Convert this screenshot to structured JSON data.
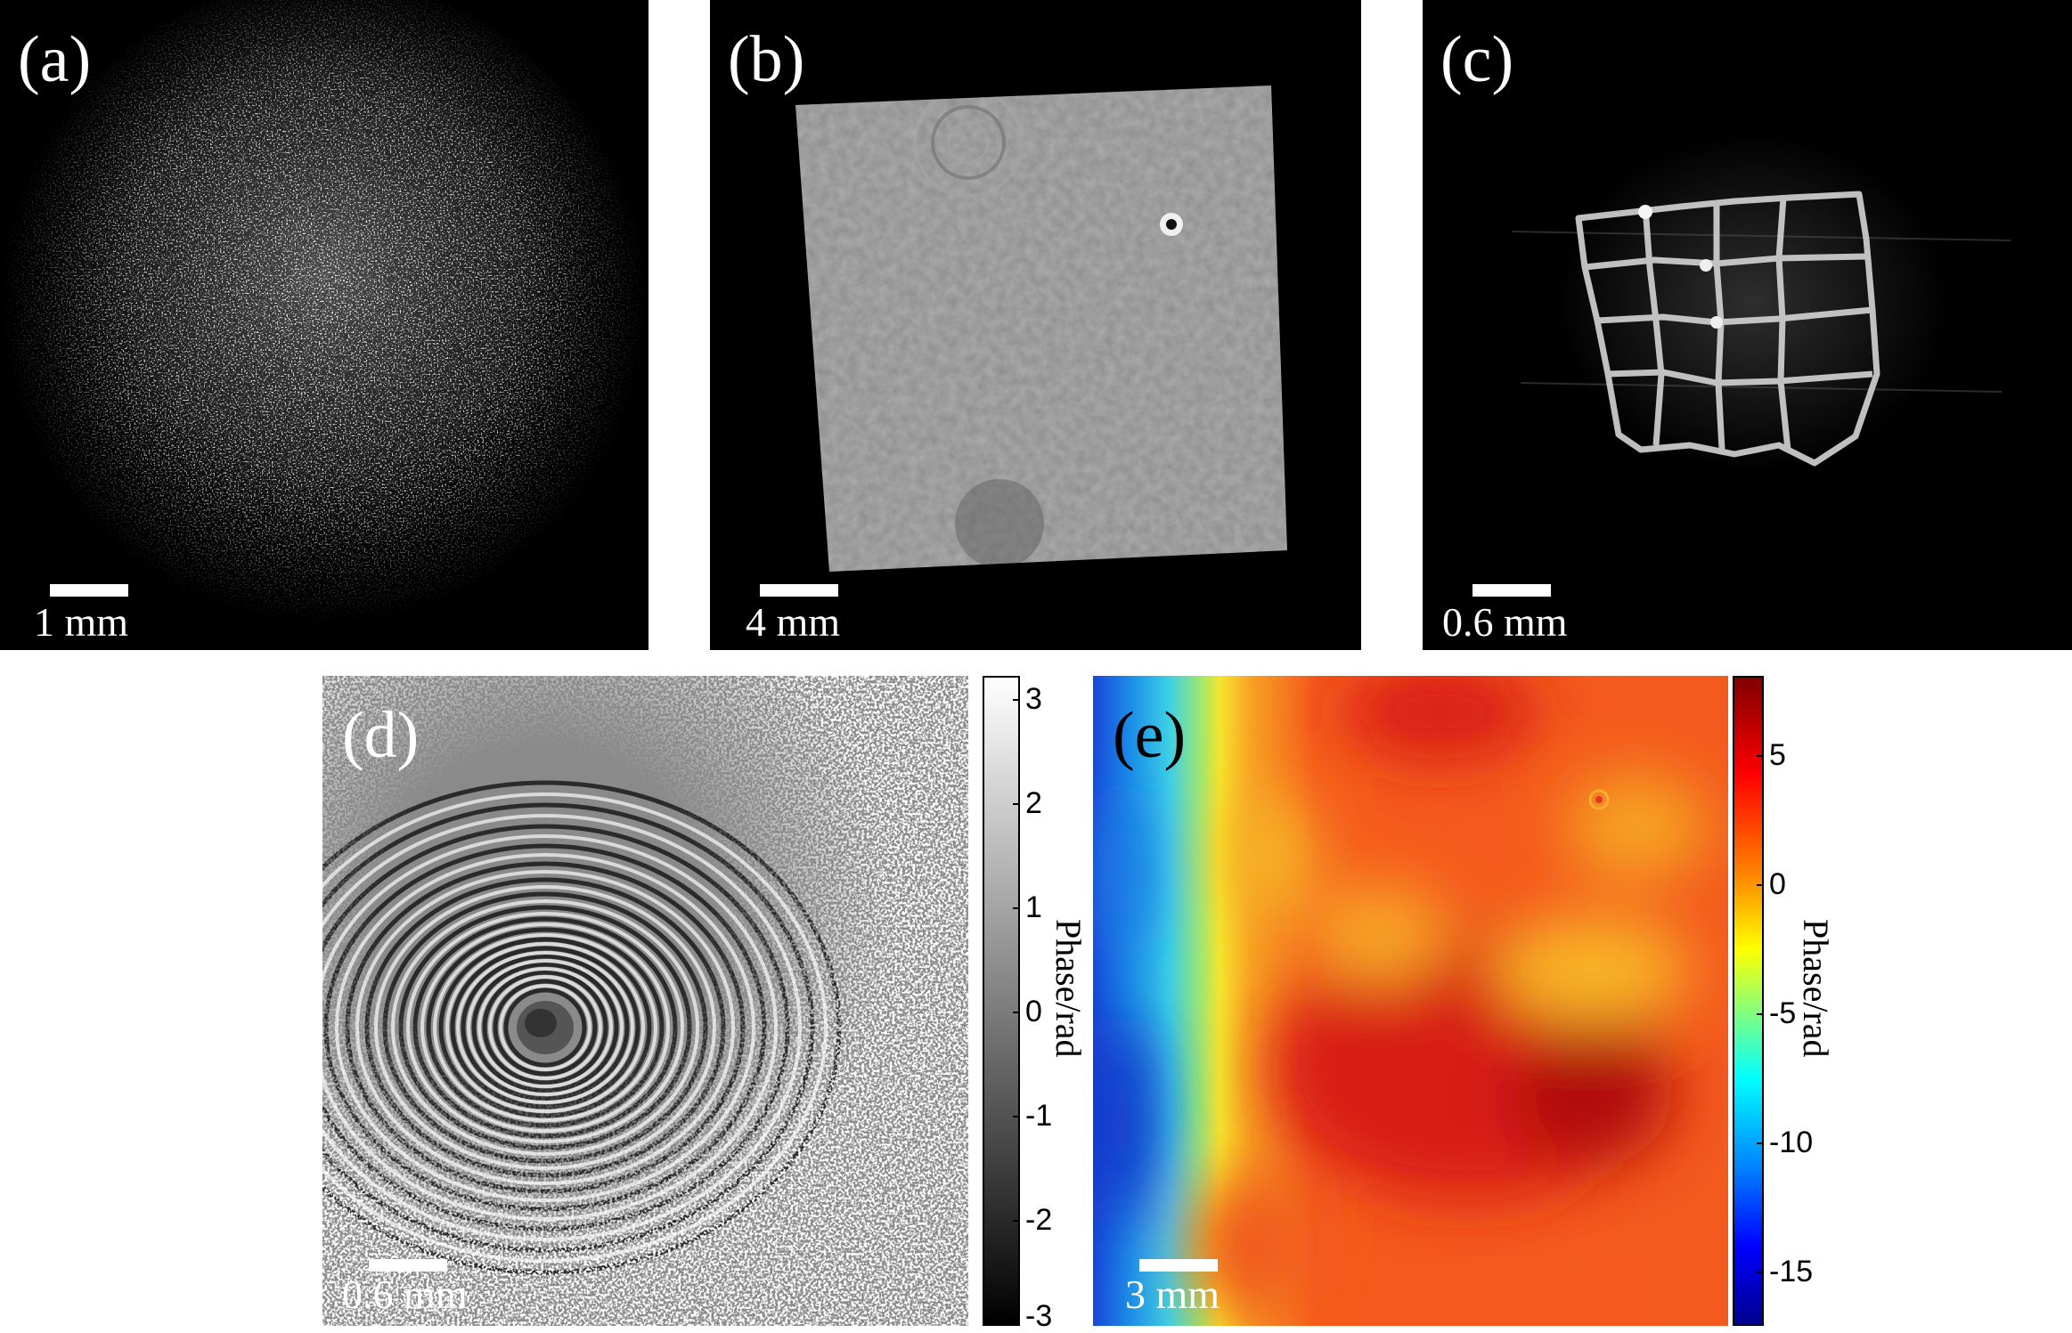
{
  "panels": {
    "a": {
      "label": "(a)",
      "scale": "1 mm"
    },
    "b": {
      "label": "(b)",
      "scale": "4 mm"
    },
    "c": {
      "label": "(c)",
      "scale": "0.6 mm"
    },
    "d": {
      "label": "(d)",
      "scale": "0.6 mm",
      "colorbar": {
        "title": "Phase/rad",
        "ticks": [
          "3",
          "2",
          "1",
          "0",
          "-1",
          "-2",
          "-3"
        ],
        "colormap": "gray"
      }
    },
    "e": {
      "label": "(e)",
      "scale": "3 mm",
      "colorbar": {
        "title": "Phase/rad",
        "ticks": [
          "5",
          "0",
          "-5",
          "-10",
          "-15"
        ],
        "colormap": "jet"
      }
    }
  },
  "colors": {
    "background": "#000000",
    "text": "#ffffff"
  }
}
